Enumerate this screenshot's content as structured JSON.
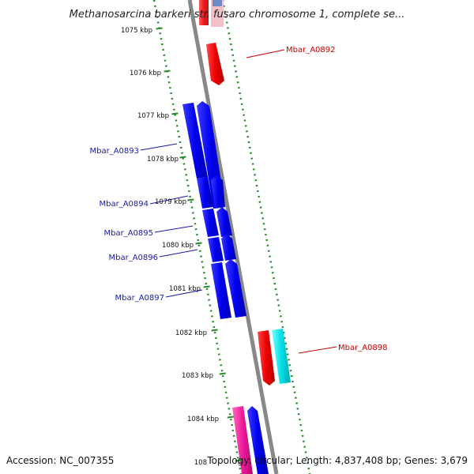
{
  "title": "Methanosarcina barkeri str. fusaro chromosome 1, complete se...",
  "footer": {
    "accession": "Accession: NC_007355",
    "topology": "Topology: circular; Length: 4,837,408 bp; Genes: 3,679"
  },
  "colors": {
    "forward_gene": "#0000ee",
    "forward_label": "#1a1aaa",
    "reverse_gene": "#ee0000",
    "reverse_label": "#cc0000",
    "cyan_gene": "#00e0e8",
    "magenta_gene": "#ee1a9a",
    "backbone": "#888888",
    "ticks": "#2a8a2a"
  },
  "ticks": [
    "1075 kbp",
    "1076 kbp",
    "1077 kbp",
    "1078 kbp",
    "1079 kbp",
    "1080 kbp",
    "1081 kbp",
    "1082 kbp",
    "1083 kbp",
    "1084 kbp",
    "108"
  ],
  "genes": [
    {
      "name": "Mbar_A0892",
      "strand": "reverse",
      "kind": "labeled"
    },
    {
      "name": "Mbar_A0893",
      "strand": "forward",
      "kind": "labeled"
    },
    {
      "name": "Mbar_A0894",
      "strand": "forward",
      "kind": "labeled"
    },
    {
      "name": "Mbar_A0895",
      "strand": "forward",
      "kind": "labeled"
    },
    {
      "name": "Mbar_A0896",
      "strand": "forward",
      "kind": "labeled"
    },
    {
      "name": "Mbar_A0897",
      "strand": "forward",
      "kind": "labeled"
    },
    {
      "name": "Mbar_A0898",
      "strand": "reverse",
      "kind": "labeled"
    }
  ]
}
